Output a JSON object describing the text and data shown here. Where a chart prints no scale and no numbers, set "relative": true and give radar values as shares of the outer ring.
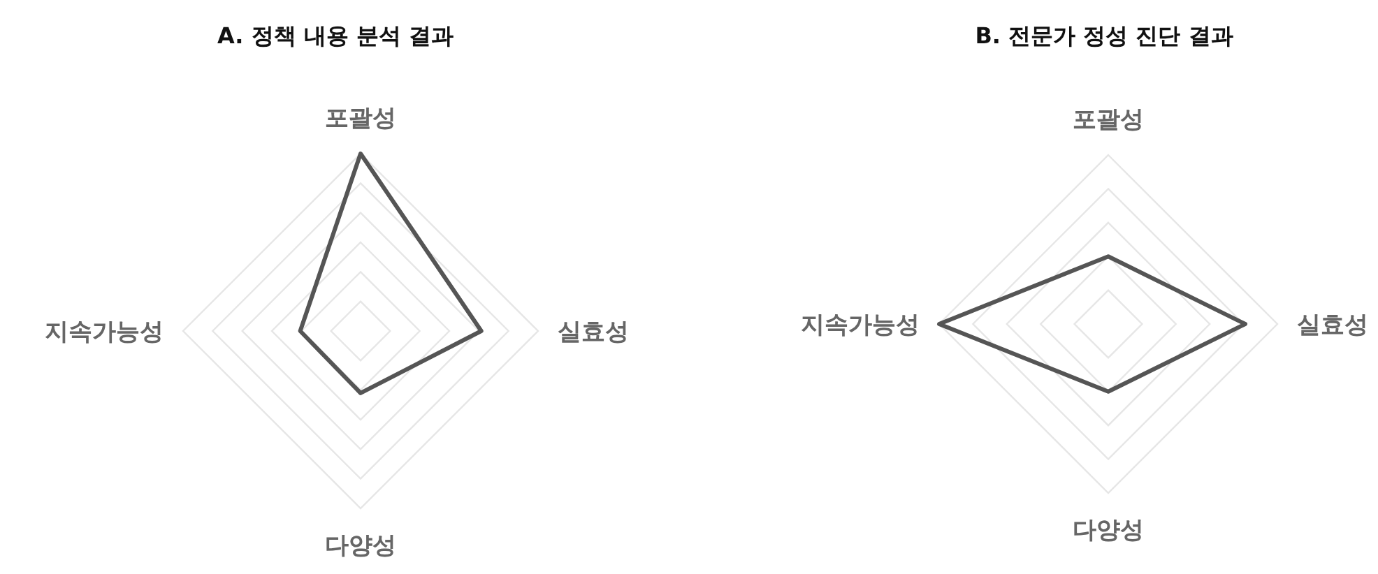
{
  "chart_data": [
    {
      "type": "radar",
      "title": "A. 정책 내용 분석 결과",
      "relative": true,
      "categories": [
        "포괄성",
        "실효성",
        "다양성",
        "지속가능성"
      ],
      "series": [
        {
          "color": "#555555",
          "values": [
            1.0,
            0.68,
            0.35,
            0.34
          ]
        }
      ]
    },
    {
      "type": "radar",
      "title": "B. 전문가 정성 진단 결과",
      "relative": true,
      "categories": [
        "포괄성",
        "실효성",
        "다양성",
        "지속가능성"
      ],
      "series": [
        {
          "color": "#555555",
          "values": [
            0.4,
            0.81,
            0.4,
            1.0
          ]
        }
      ]
    }
  ]
}
